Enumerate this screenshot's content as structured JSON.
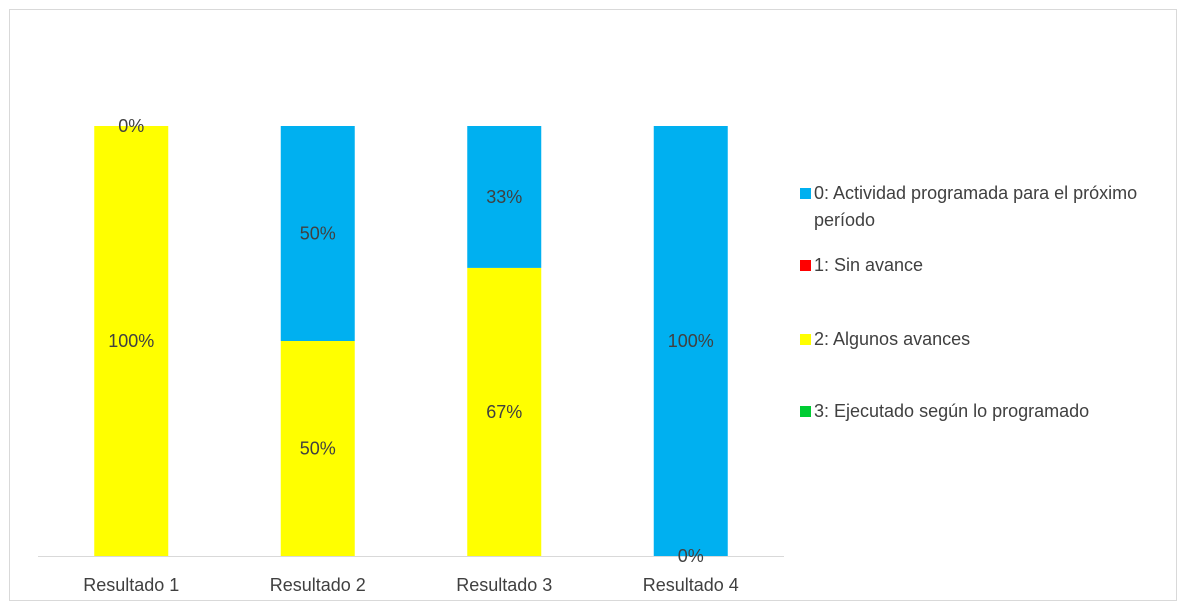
{
  "chart_data": {
    "type": "bar",
    "stacked": "percent",
    "categories": [
      "Resultado 1",
      "Resultado 2",
      "Resultado 3",
      "Resultado 4"
    ],
    "series": [
      {
        "name": "3: Ejecutado según lo programado",
        "color": "#00cc33",
        "values": [
          0,
          0,
          0,
          0
        ],
        "labels": [
          "",
          "",
          "",
          ""
        ]
      },
      {
        "name": "2: Algunos avances",
        "color": "#ffff00",
        "values": [
          100,
          50,
          67,
          0
        ],
        "labels": [
          "100%",
          "50%",
          "67%",
          "0%"
        ]
      },
      {
        "name": "1: Sin avance",
        "color": "#ff0000",
        "values": [
          0,
          0,
          0,
          0
        ],
        "labels": [
          "",
          "",
          "",
          ""
        ]
      },
      {
        "name": "0: Actividad programada para el próximo período",
        "color": "#00b0f0",
        "values": [
          0,
          50,
          33,
          100
        ],
        "labels": [
          "0%",
          "50%",
          "33%",
          "100%"
        ]
      }
    ],
    "ylim": [
      0,
      100
    ],
    "grid": false,
    "legend_position": "right",
    "title": "",
    "xlabel": "",
    "ylabel": ""
  },
  "legend": [
    {
      "label": "0: Actividad programada para el próximo período",
      "color": "#00b0f0"
    },
    {
      "label": "1: Sin avance",
      "color": "#ff0000"
    },
    {
      "label": "2: Algunos avances",
      "color": "#ffff00"
    },
    {
      "label": "3: Ejecutado según lo programado",
      "color": "#00cc33"
    }
  ]
}
